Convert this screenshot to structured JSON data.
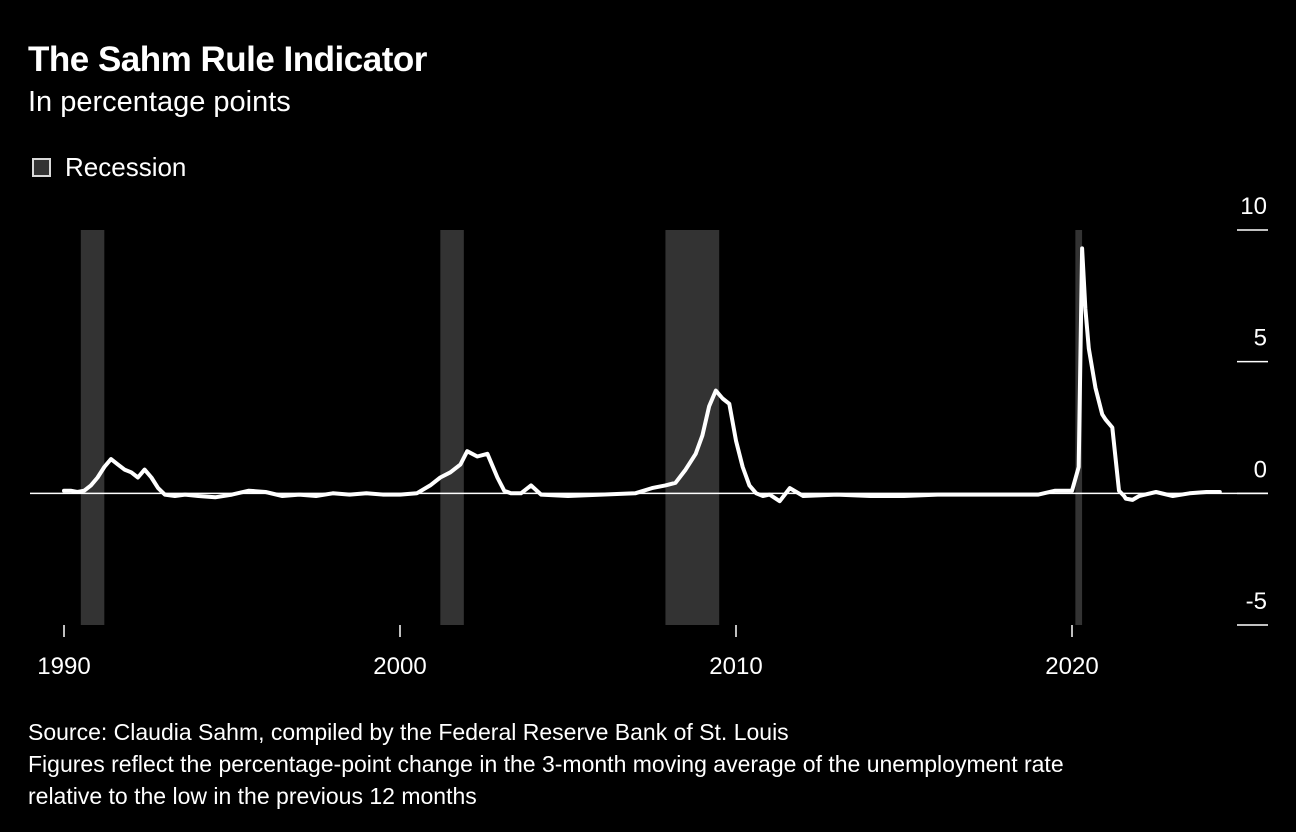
{
  "title": "The Sahm Rule Indicator",
  "subtitle": "In percentage points",
  "legend": {
    "recession_label": "Recession"
  },
  "footer": {
    "source": "Source: Claudia Sahm, compiled by the Federal Reserve Bank of St. Louis",
    "note_line1": "Figures reflect the percentage-point change in the 3-month moving average of the unemployment rate",
    "note_line2": "relative to the low in the previous 12 months"
  },
  "colors": {
    "background": "#000000",
    "line": "#ffffff",
    "recession": "#333333",
    "text": "#ffffff"
  },
  "chart_data": {
    "type": "line",
    "title": "The Sahm Rule Indicator",
    "subtitle": "In percentage points",
    "x_axis": {
      "range": [
        1989.9,
        2025.0
      ],
      "ticks": [
        1990,
        2000,
        2010,
        2020
      ],
      "tick_labels": [
        "1990",
        "2000",
        "2010",
        "2020"
      ]
    },
    "y_axis": {
      "range": [
        -5,
        10
      ],
      "ticks": [
        -5,
        0,
        5,
        10
      ],
      "tick_labels": [
        "-5",
        "0",
        "5",
        "10"
      ],
      "position": "right"
    },
    "zero_line": true,
    "grid": false,
    "legend": {
      "entries": [
        "Recession"
      ],
      "placement": "top-left"
    },
    "recessions": [
      {
        "start": 1990.5,
        "end": 1991.2
      },
      {
        "start": 2001.2,
        "end": 2001.9
      },
      {
        "start": 2007.9,
        "end": 2009.5
      },
      {
        "start": 2020.1,
        "end": 2020.3
      }
    ],
    "series": [
      {
        "x": [
          1990.0,
          1990.2,
          1990.4,
          1990.6,
          1990.8,
          1991.0,
          1991.2,
          1991.4,
          1991.6,
          1991.8,
          1992.0,
          1992.2,
          1992.4,
          1992.6,
          1992.8,
          1993.0,
          1993.3,
          1993.6,
          1994.0,
          1994.5,
          1995.0,
          1995.5,
          1996.0,
          1996.5,
          1997.0,
          1997.5,
          1998.0,
          1998.5,
          1999.0,
          1999.5,
          2000.0,
          2000.5,
          2000.9,
          2001.2,
          2001.5,
          2001.8,
          2002.0,
          2002.3,
          2002.6,
          2002.9,
          2003.1,
          2003.3,
          2003.6,
          2003.9,
          2004.2,
          2005.0,
          2006.0,
          2007.0,
          2007.5,
          2007.9,
          2008.2,
          2008.5,
          2008.8,
          2009.0,
          2009.2,
          2009.4,
          2009.6,
          2009.8,
          2010.0,
          2010.2,
          2010.4,
          2010.6,
          2010.8,
          2011.0,
          2011.3,
          2011.6,
          2012.0,
          2013.0,
          2014.0,
          2015.0,
          2016.0,
          2017.0,
          2018.0,
          2019.0,
          2019.5,
          2020.0,
          2020.2,
          2020.3,
          2020.4,
          2020.5,
          2020.7,
          2020.9,
          2021.0,
          2021.2,
          2021.4,
          2021.55,
          2021.6,
          2021.8,
          2022.0,
          2022.5,
          2023.0,
          2023.5,
          2024.0,
          2024.4
        ],
        "values": [
          0.1,
          0.1,
          0.05,
          0.1,
          0.3,
          0.6,
          1.0,
          1.3,
          1.1,
          0.9,
          0.8,
          0.6,
          0.9,
          0.6,
          0.2,
          -0.05,
          -0.1,
          -0.05,
          -0.1,
          -0.15,
          -0.05,
          0.1,
          0.05,
          -0.1,
          -0.05,
          -0.1,
          0.0,
          -0.05,
          0.0,
          -0.05,
          -0.05,
          0.0,
          0.3,
          0.6,
          0.8,
          1.1,
          1.6,
          1.4,
          1.5,
          0.6,
          0.1,
          0.0,
          0.0,
          0.3,
          -0.05,
          -0.1,
          -0.05,
          0.0,
          0.2,
          0.3,
          0.4,
          0.9,
          1.5,
          2.2,
          3.3,
          3.9,
          3.6,
          3.4,
          2.0,
          1.0,
          0.3,
          0.0,
          -0.1,
          -0.05,
          -0.3,
          0.2,
          -0.1,
          -0.05,
          -0.1,
          -0.1,
          -0.05,
          -0.05,
          -0.05,
          -0.05,
          0.1,
          0.1,
          1.0,
          9.3,
          7.0,
          5.5,
          4.0,
          3.0,
          2.8,
          2.5,
          0.1,
          -0.1,
          -0.2,
          -0.25,
          -0.1,
          0.05,
          -0.1,
          0.0,
          0.05,
          0.05
        ]
      }
    ]
  }
}
